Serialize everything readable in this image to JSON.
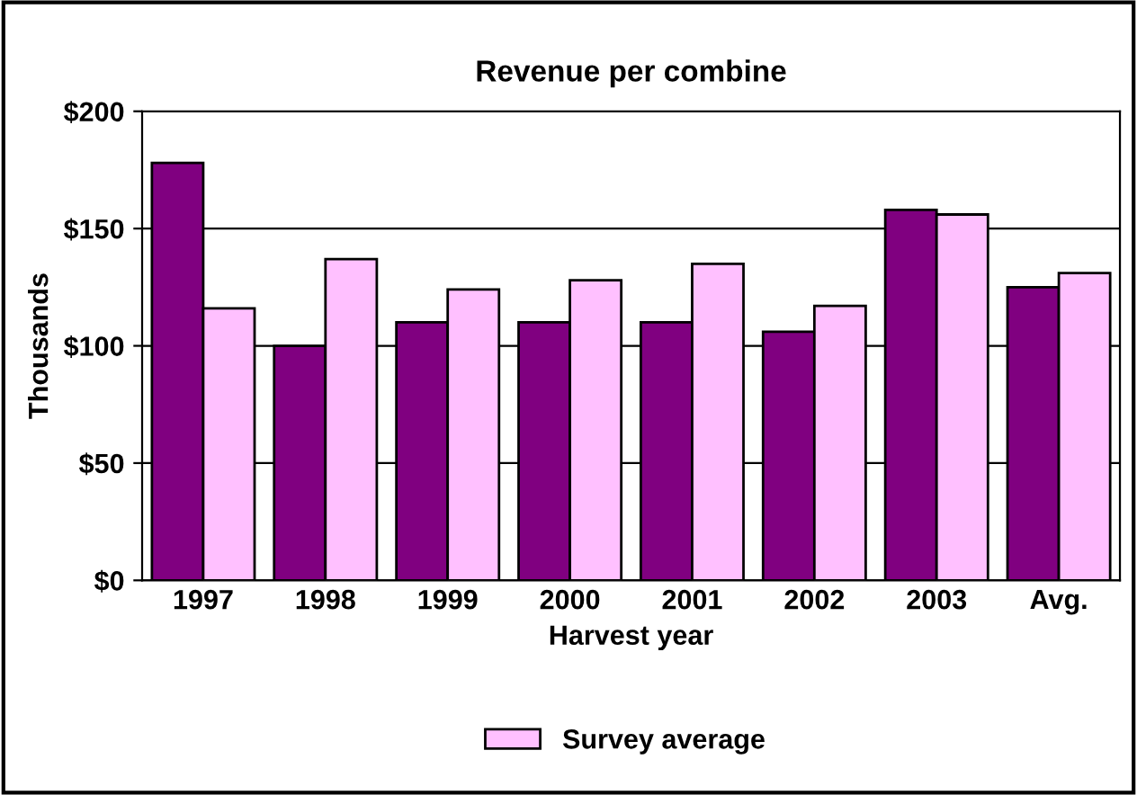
{
  "chart_data": {
    "type": "bar",
    "title": "Revenue per combine",
    "xlabel": "Harvest year",
    "ylabel": "Thousands",
    "categories": [
      "1997",
      "1998",
      "1999",
      "2000",
      "2001",
      "2002",
      "2003",
      "Avg."
    ],
    "series": [
      {
        "color": "#800080",
        "values": [
          178,
          100,
          110,
          110,
          110,
          106,
          158,
          125
        ]
      },
      {
        "name": "Survey average",
        "color": "#ffc0ff",
        "values": [
          116,
          137,
          124,
          128,
          135,
          117,
          156,
          131
        ]
      }
    ],
    "ylim": [
      0,
      200
    ],
    "yticks": [
      {
        "value": 0,
        "label": "$0"
      },
      {
        "value": 50,
        "label": "$50"
      },
      {
        "value": 100,
        "label": "$100"
      },
      {
        "value": 150,
        "label": "$150"
      },
      {
        "value": 200,
        "label": "$200"
      }
    ],
    "grid": "y",
    "legend": "bottom"
  }
}
